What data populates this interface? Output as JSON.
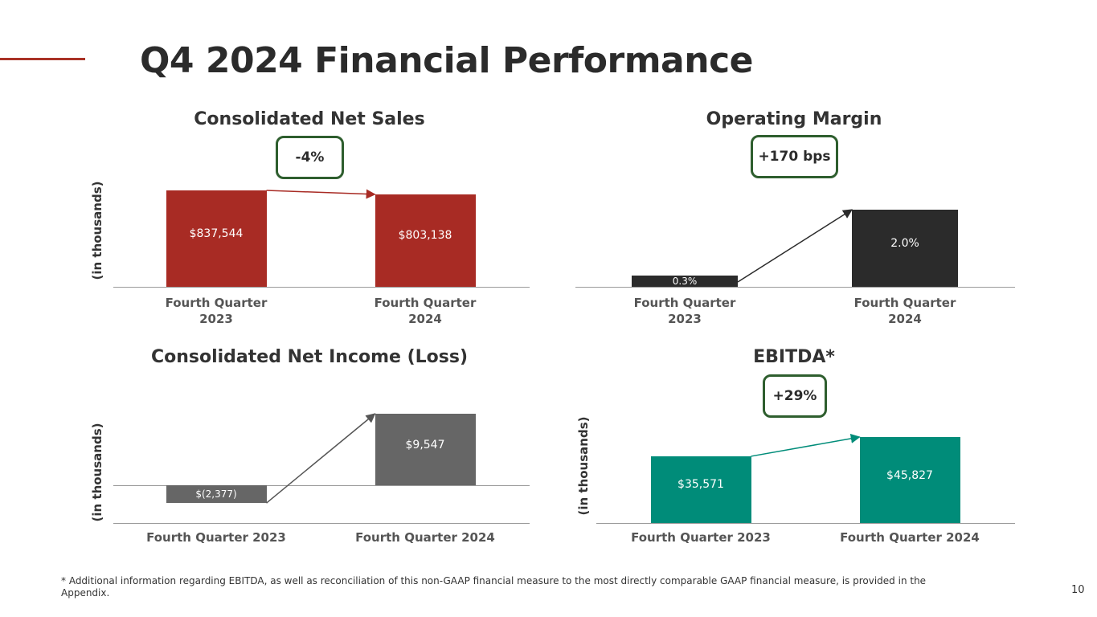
{
  "page": {
    "title": "Q4 2024 Financial Performance",
    "footnote": "* Additional information regarding EBITDA, as well as reconciliation of this non-GAAP financial measure to the most directly comparable GAAP financial measure, is provided in the Appendix.",
    "page_number": "10",
    "accent_color": "#a93226"
  },
  "chart_data": [
    {
      "type": "bar",
      "title": "Consolidated Net Sales",
      "change_badge": "-4%",
      "ylabel": "(in thousands)",
      "categories": [
        "Fourth Quarter 2023",
        "Fourth Quarter 2024"
      ],
      "category_lines": [
        [
          "Fourth Quarter",
          "2023"
        ],
        [
          "Fourth Quarter",
          "2024"
        ]
      ],
      "values": [
        837544,
        803138
      ],
      "value_labels": [
        "$837,544",
        "$803,138"
      ],
      "color": "#a82b24",
      "ylim": [
        0,
        840000
      ]
    },
    {
      "type": "bar",
      "title": "Operating Margin",
      "change_badge": "+170 bps",
      "ylabel": "",
      "categories": [
        "Fourth Quarter 2023",
        "Fourth Quarter 2024"
      ],
      "category_lines": [
        [
          "Fourth Quarter",
          "2023"
        ],
        [
          "Fourth Quarter",
          "2024"
        ]
      ],
      "values": [
        0.3,
        2.0
      ],
      "value_labels": [
        "0.3%",
        "2.0%"
      ],
      "color": "#2b2b2b",
      "ylim": [
        0,
        2.0
      ]
    },
    {
      "type": "bar",
      "title": "Consolidated Net Income (Loss)",
      "change_badge": "",
      "ylabel": "(in thousands)",
      "categories": [
        "Fourth Quarter 2023",
        "Fourth Quarter 2024"
      ],
      "category_lines": [
        [
          "Fourth Quarter 2023"
        ],
        [
          "Fourth Quarter 2024"
        ]
      ],
      "values": [
        -2377,
        9547
      ],
      "value_labels": [
        "$(2,377)",
        "$9,547"
      ],
      "color": "#666666",
      "ylim": [
        -2377,
        9547
      ]
    },
    {
      "type": "bar",
      "title": "EBITDA*",
      "change_badge": "+29%",
      "ylabel": "(in thousands)",
      "categories": [
        "Fourth Quarter 2023",
        "Fourth Quarter 2024"
      ],
      "category_lines": [
        [
          "Fourth Quarter 2023"
        ],
        [
          "Fourth Quarter 2024"
        ]
      ],
      "values": [
        35571,
        45827
      ],
      "value_labels": [
        "$35,571",
        "$45,827"
      ],
      "color": "#008c79",
      "ylim": [
        0,
        45827
      ]
    }
  ]
}
